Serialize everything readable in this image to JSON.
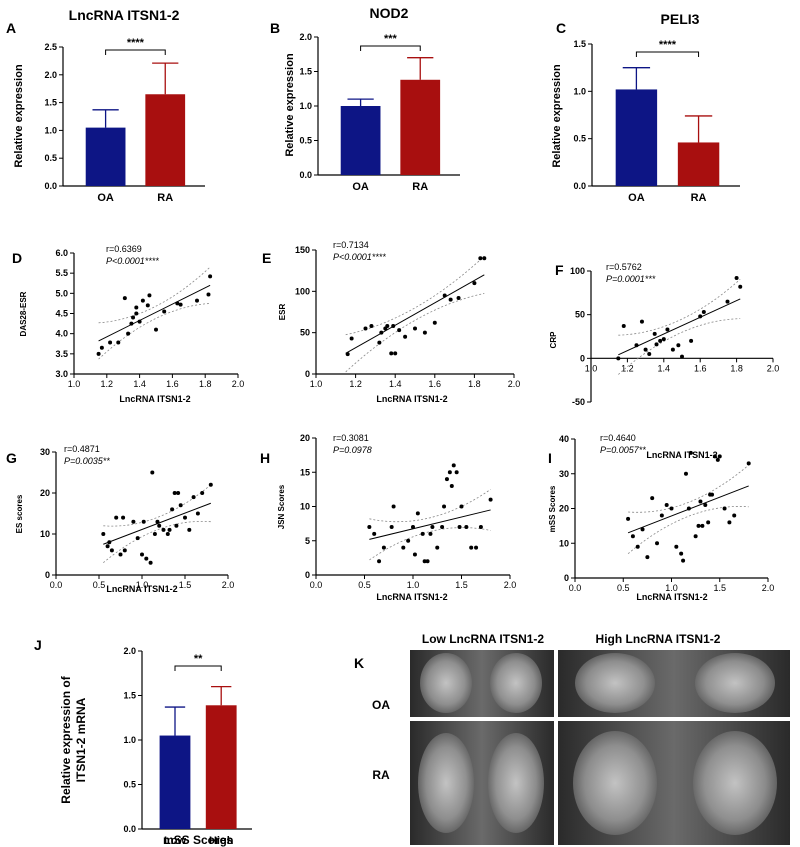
{
  "colors": {
    "oa": "#0d1585",
    "ra": "#a80f0f",
    "axis": "#000000",
    "ci": "#888888"
  },
  "chart_data": [
    {
      "id": "A",
      "type": "bar",
      "title": "LncRNA ITSN1-2",
      "ylabel": "Relative expression",
      "categories": [
        "OA",
        "RA"
      ],
      "values": [
        1.05,
        1.65
      ],
      "errors": [
        0.32,
        0.56
      ],
      "ylim": [
        0,
        2.5
      ],
      "yticks": [
        "0.0",
        "0.5",
        "1.0",
        "1.5",
        "2.0",
        "2.5"
      ],
      "significance": "****"
    },
    {
      "id": "B",
      "type": "bar",
      "title": "NOD2",
      "ylabel": "Relative expression",
      "categories": [
        "OA",
        "RA"
      ],
      "values": [
        1.0,
        1.38
      ],
      "errors": [
        0.1,
        0.32
      ],
      "ylim": [
        0,
        2.0
      ],
      "yticks": [
        "0.0",
        "0.5",
        "1.0",
        "1.5",
        "2.0"
      ],
      "significance": "***"
    },
    {
      "id": "C",
      "type": "bar",
      "title": "PELI3",
      "ylabel": "Relative expression",
      "categories": [
        "OA",
        "RA"
      ],
      "values": [
        1.02,
        0.46
      ],
      "errors": [
        0.23,
        0.28
      ],
      "ylim": [
        0,
        1.5
      ],
      "yticks": [
        "0.0",
        "0.5",
        "1.0",
        "1.5"
      ],
      "significance": "****"
    },
    {
      "id": "D",
      "type": "scatter",
      "xlabel": "LncRNA ITSN1-2",
      "ylabel": "DAS28-ESR",
      "r": "r=0.6369",
      "p": "P<0.0001****",
      "xlim": [
        1.0,
        2.0
      ],
      "ylim": [
        3.0,
        6.0
      ],
      "xticks": [
        "1.0",
        "1.2",
        "1.4",
        "1.6",
        "1.8",
        "2.0"
      ],
      "yticks": [
        "3.0",
        "3.5",
        "4.0",
        "4.5",
        "5.0",
        "5.5",
        "6.0"
      ],
      "x": [
        1.15,
        1.17,
        1.22,
        1.27,
        1.31,
        1.33,
        1.35,
        1.36,
        1.38,
        1.38,
        1.4,
        1.42,
        1.45,
        1.46,
        1.5,
        1.55,
        1.63,
        1.65,
        1.75,
        1.82,
        1.83
      ],
      "y": [
        3.5,
        3.65,
        3.78,
        3.78,
        4.88,
        4.0,
        4.25,
        4.4,
        4.5,
        4.65,
        4.3,
        4.82,
        4.7,
        4.95,
        4.1,
        4.55,
        4.75,
        4.72,
        4.82,
        4.97,
        5.42
      ],
      "fit": [
        [
          1.15,
          3.82
        ],
        [
          1.83,
          5.2
        ]
      ]
    },
    {
      "id": "E",
      "type": "scatter",
      "xlabel": "LncRNA ITSN1-2",
      "ylabel": "ESR",
      "r": "r=0.7134",
      "p": "P<0.0001****",
      "xlim": [
        1.0,
        2.0
      ],
      "ylim": [
        0,
        150
      ],
      "xticks": [
        "1.0",
        "1.2",
        "1.4",
        "1.6",
        "1.8",
        "2.0"
      ],
      "yticks": [
        "0",
        "50",
        "100",
        "150"
      ],
      "x": [
        1.16,
        1.18,
        1.25,
        1.28,
        1.32,
        1.33,
        1.35,
        1.36,
        1.38,
        1.39,
        1.4,
        1.42,
        1.45,
        1.5,
        1.55,
        1.6,
        1.65,
        1.68,
        1.72,
        1.8,
        1.83,
        1.85
      ],
      "y": [
        24,
        43,
        55,
        58,
        38,
        50,
        55,
        58,
        25,
        58,
        25,
        53,
        45,
        55,
        50,
        62,
        95,
        90,
        92,
        110,
        140,
        140
      ],
      "fit": [
        [
          1.15,
          25
        ],
        [
          1.85,
          120
        ]
      ]
    },
    {
      "id": "F",
      "type": "scatter",
      "xlabel": "LncRNA ITSN1-2",
      "ylabel": "CRP",
      "r": "r=0.5762",
      "p": "P=0.0001***",
      "xlim": [
        1.0,
        2.0
      ],
      "ylim": [
        -50,
        100
      ],
      "xticks": [
        "1.0",
        "1.2",
        "1.4",
        "1.6",
        "1.8",
        "2.0"
      ],
      "yticks": [
        "-50",
        "0",
        "50",
        "100"
      ],
      "x": [
        1.15,
        1.18,
        1.25,
        1.28,
        1.3,
        1.32,
        1.35,
        1.36,
        1.38,
        1.4,
        1.42,
        1.45,
        1.48,
        1.5,
        1.55,
        1.6,
        1.62,
        1.75,
        1.8,
        1.82
      ],
      "y": [
        0,
        37,
        15,
        42,
        10,
        5,
        28,
        16,
        20,
        22,
        33,
        10,
        15,
        2,
        20,
        48,
        53,
        65,
        92,
        82
      ],
      "fit": [
        [
          1.15,
          4
        ],
        [
          1.82,
          68
        ]
      ]
    },
    {
      "id": "G",
      "type": "scatter",
      "xlabel": "LncRNA ITSN1-2",
      "ylabel": "ES scores",
      "r": "r=0.4871",
      "p": "P=0.0035**",
      "xlim": [
        0.0,
        2.0
      ],
      "ylim": [
        0,
        30
      ],
      "xticks": [
        "0.0",
        "0.5",
        "1.0",
        "1.5",
        "2.0"
      ],
      "yticks": [
        "0",
        "10",
        "20",
        "30"
      ],
      "x": [
        0.55,
        0.6,
        0.62,
        0.65,
        0.7,
        0.75,
        0.78,
        0.8,
        0.9,
        0.95,
        1.0,
        1.02,
        1.05,
        1.1,
        1.12,
        1.15,
        1.18,
        1.2,
        1.25,
        1.3,
        1.32,
        1.35,
        1.38,
        1.4,
        1.42,
        1.45,
        1.5,
        1.55,
        1.6,
        1.65,
        1.7,
        1.8
      ],
      "y": [
        10,
        7,
        8,
        6,
        14,
        5,
        14,
        6,
        13,
        9,
        5,
        13,
        4,
        3,
        25,
        10,
        13,
        12,
        11,
        10,
        11,
        16,
        20,
        12,
        20,
        17,
        14,
        11,
        19,
        15,
        20,
        22
      ],
      "fit": [
        [
          0.55,
          7.5
        ],
        [
          1.8,
          17.5
        ]
      ]
    },
    {
      "id": "H",
      "type": "scatter",
      "xlabel": "LncRNA ITSN1-2",
      "ylabel": "JSN Scores",
      "r": "r=0.3081",
      "p": "P=0.0978",
      "xlim": [
        0.0,
        2.0
      ],
      "ylim": [
        0,
        20
      ],
      "xticks": [
        "0.0",
        "0.5",
        "1.0",
        "1.5",
        "2.0"
      ],
      "yticks": [
        "0",
        "5",
        "10",
        "15",
        "20"
      ],
      "x": [
        0.55,
        0.6,
        0.65,
        0.7,
        0.78,
        0.8,
        0.9,
        0.95,
        1.0,
        1.02,
        1.05,
        1.1,
        1.12,
        1.15,
        1.18,
        1.2,
        1.25,
        1.3,
        1.32,
        1.35,
        1.38,
        1.4,
        1.42,
        1.45,
        1.48,
        1.5,
        1.55,
        1.6,
        1.65,
        1.7,
        1.8
      ],
      "y": [
        7,
        6,
        2,
        4,
        7,
        10,
        4,
        5,
        7,
        3,
        9,
        6,
        2,
        2,
        6,
        7,
        4,
        7,
        10,
        14,
        15,
        13,
        16,
        15,
        7,
        10,
        7,
        4,
        4,
        7,
        11
      ],
      "fit": [
        [
          0.55,
          5.2
        ],
        [
          1.8,
          9.5
        ]
      ]
    },
    {
      "id": "I",
      "type": "scatter",
      "xlabel": "LncRNA ITSN1-2",
      "ylabel": "mSS Scores",
      "r": "r=0.4640",
      "p": "P=0.0057**",
      "xlim": [
        0.0,
        2.0
      ],
      "ylim": [
        0,
        40
      ],
      "xticks": [
        "0.0",
        "0.5",
        "1.0",
        "1.5",
        "2.0"
      ],
      "yticks": [
        "0",
        "10",
        "20",
        "30",
        "40"
      ],
      "x": [
        0.55,
        0.6,
        0.65,
        0.7,
        0.75,
        0.8,
        0.85,
        0.9,
        0.95,
        1.0,
        1.05,
        1.1,
        1.12,
        1.15,
        1.18,
        1.2,
        1.25,
        1.28,
        1.3,
        1.32,
        1.35,
        1.38,
        1.4,
        1.42,
        1.45,
        1.48,
        1.5,
        1.55,
        1.6,
        1.65,
        1.8
      ],
      "y": [
        17,
        12,
        9,
        14,
        6,
        23,
        10,
        18,
        21,
        20,
        9,
        7,
        5,
        30,
        20,
        36,
        12,
        15,
        22,
        15,
        21,
        16,
        24,
        24,
        35,
        34,
        35,
        20,
        16,
        18,
        33
      ],
      "fit": [
        [
          0.55,
          13
        ],
        [
          1.8,
          26.5
        ]
      ]
    },
    {
      "id": "J",
      "type": "bar",
      "xlabel": "mSS Scores",
      "ylabel": "Relative expression of ITSN1-2 mRNA",
      "categories": [
        "Low",
        "High"
      ],
      "values": [
        1.05,
        1.39
      ],
      "errors": [
        0.32,
        0.21
      ],
      "ylim": [
        0,
        2.0
      ],
      "yticks": [
        "0.0",
        "0.5",
        "1.0",
        "1.5",
        "2.0"
      ],
      "significance": "**"
    }
  ],
  "panel_k": {
    "label": "K",
    "col_headers": [
      "Low LncRNA ITSN1-2",
      "High LncRNA ITSN1-2"
    ],
    "row_labels": [
      "OA",
      "RA"
    ]
  }
}
